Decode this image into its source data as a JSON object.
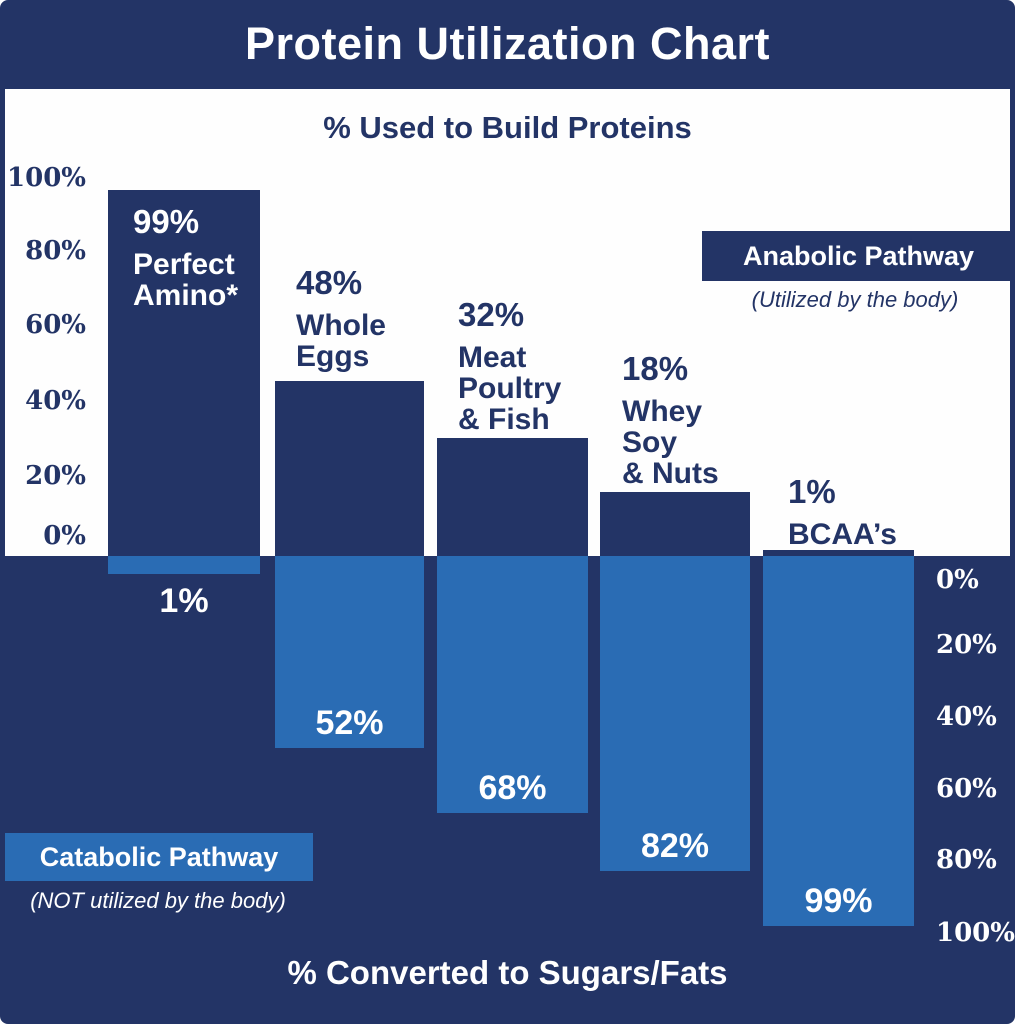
{
  "title": "Protein Utilization Chart",
  "top_section": {
    "heading": "% Used to Build Proteins"
  },
  "bottom_section": {
    "heading": "% Converted to Sugars/Fats"
  },
  "axis_left": {
    "ticks": [
      "100%",
      "80%",
      "60%",
      "40%",
      "20%",
      "0%"
    ]
  },
  "axis_right": {
    "ticks": [
      "0%",
      "20%",
      "40%",
      "60%",
      "80%",
      "100%"
    ]
  },
  "legend": {
    "anabolic": {
      "label": "Anabolic Pathway",
      "caption": "(Utilized by the body)"
    },
    "catabolic": {
      "label": "Catabolic Pathway",
      "caption": "(NOT utilized by the body)"
    }
  },
  "bars": [
    {
      "name": "Perfect\nAmino*",
      "anabolic_pct": "99%",
      "catabolic_pct": "1%"
    },
    {
      "name": "Whole\nEggs",
      "anabolic_pct": "48%",
      "catabolic_pct": "52%"
    },
    {
      "name": "Meat\nPoultry\n& Fish",
      "anabolic_pct": "32%",
      "catabolic_pct": "68%"
    },
    {
      "name": "Whey\nSoy\n& Nuts",
      "anabolic_pct": "18%",
      "catabolic_pct": "82%"
    },
    {
      "name": "BCAA’s",
      "anabolic_pct": "1%",
      "catabolic_pct": "99%"
    }
  ],
  "colors": {
    "navy": "#233466",
    "blue": "#2a6cb4",
    "background": "#ffffff"
  },
  "chart_data": {
    "type": "bar",
    "subtype": "diverging-vertical",
    "title": "Protein Utilization Chart",
    "categories": [
      "Perfect Amino*",
      "Whole Eggs",
      "Meat Poultry & Fish",
      "Whey Soy & Nuts",
      "BCAA's"
    ],
    "series": [
      {
        "name": "% Used to Build Proteins (Anabolic Pathway — Utilized by the body)",
        "direction": "up",
        "values": [
          99,
          48,
          32,
          18,
          1
        ]
      },
      {
        "name": "% Converted to Sugars/Fats (Catabolic Pathway — NOT utilized by the body)",
        "direction": "down",
        "values": [
          1,
          52,
          68,
          82,
          99
        ]
      }
    ],
    "upper_axis": {
      "side": "left",
      "range": [
        0,
        100
      ],
      "ticks": [
        100,
        80,
        60,
        40,
        20,
        0
      ]
    },
    "lower_axis": {
      "side": "right",
      "range": [
        0,
        100
      ],
      "ticks": [
        0,
        20,
        40,
        60,
        80,
        100
      ]
    },
    "grid": false,
    "data_labels": true,
    "legend_position": "anabolic top-right, catabolic bottom-left"
  }
}
